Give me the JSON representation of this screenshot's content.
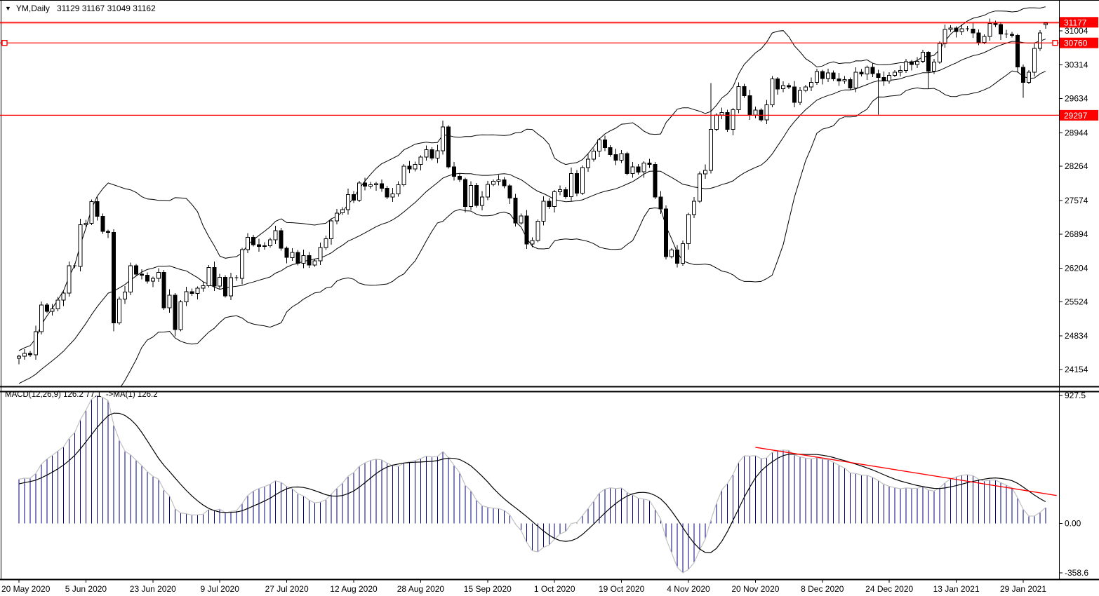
{
  "window": {
    "symbol_period": "YM,Daily",
    "ohlc_readout": "31129 31167 31049 31162"
  },
  "price_panel": {
    "axis_labels": [
      31004,
      30314,
      29634,
      28944,
      28264,
      27574,
      26894,
      26204,
      25524,
      24834,
      24154
    ],
    "levels": [
      {
        "value": 31177,
        "label": "31177",
        "selected": false,
        "emphasized": true
      },
      {
        "value": 30760,
        "label": "30760",
        "selected": true,
        "emphasized": false
      },
      {
        "value": 29297,
        "label": "29297",
        "selected": false,
        "emphasized": false
      }
    ]
  },
  "macd_panel": {
    "label": "MACD(12,26,9) 126.2 77.1  ->MA(1) 126.2",
    "axis_labels": [
      "927.5",
      "0.00",
      "-358.6"
    ]
  },
  "x_axis": {
    "labels": [
      "20 May 2020",
      "5 Jun 2020",
      "23 Jun 2020",
      "9 Jul 2020",
      "27 Jul 2020",
      "12 Aug 2020",
      "28 Aug 2020",
      "15 Sep 2020",
      "1 Oct 2020",
      "19 Oct 2020",
      "4 Nov 2020",
      "20 Nov 2020",
      "8 Dec 2020",
      "24 Dec 2020",
      "13 Jan 2021",
      "29 Jan 2021"
    ],
    "bars_per_label": 12
  },
  "colors": {
    "level_red": "#ff0000",
    "histogram_navy": "#000080",
    "macd_line_silver": "#c0c0c0",
    "signal_black": "#000000",
    "bull_fill": "#ffffff",
    "bear_fill": "#000000",
    "axis_text": "#000000",
    "tag_text": "#ffffff"
  },
  "chart_data": {
    "type": "candlestick",
    "title": "YM,Daily",
    "current_bar": {
      "open": 31129,
      "high": 31167,
      "low": 31049,
      "close": 31162
    },
    "indicators": {
      "bollinger": {
        "period": 20,
        "deviation": 2
      },
      "macd": {
        "fast": 12,
        "slow": 26,
        "signal": 9
      }
    },
    "ylim_price": [
      24154,
      31004
    ],
    "ylim_macd": [
      -358.6,
      927.5
    ],
    "closes": [
      24420,
      24480,
      24450,
      24920,
      25460,
      25330,
      25380,
      25560,
      25700,
      26250,
      26240,
      27080,
      27110,
      27550,
      27250,
      26950,
      26930,
      25100,
      25580,
      25720,
      26250,
      26080,
      26060,
      25940,
      26000,
      26120,
      25400,
      25660,
      24960,
      25520,
      25730,
      25690,
      25800,
      25850,
      26220,
      25840,
      26020,
      25640,
      26010,
      26000,
      26580,
      26830,
      26680,
      26640,
      26660,
      26780,
      26960,
      26610,
      26420,
      26520,
      26300,
      26460,
      26270,
      26350,
      26620,
      26800,
      27160,
      27320,
      27390,
      27690,
      27580,
      27930,
      27860,
      27890,
      27910,
      27820,
      27640,
      27710,
      27890,
      28270,
      28210,
      28300,
      28450,
      28600,
      28430,
      28580,
      29060,
      28250,
      28060,
      28000,
      27450,
      27880,
      27470,
      27640,
      27900,
      27960,
      27990,
      27870,
      27620,
      27120,
      27260,
      26690,
      26760,
      27150,
      27560,
      27450,
      27750,
      27790,
      27650,
      28120,
      27720,
      28240,
      28410,
      28570,
      28800,
      28640,
      28500,
      28390,
      28520,
      28120,
      28250,
      28150,
      28330,
      28300,
      27640,
      27400,
      26440,
      26570,
      26300,
      26700,
      27290,
      27560,
      28110,
      28180,
      29010,
      29300,
      29350,
      29010,
      29410,
      29880,
      29690,
      29300,
      29400,
      29200,
      29510,
      30030,
      29830,
      29900,
      29870,
      29560,
      29800,
      29870,
      29960,
      30180,
      30040,
      30150,
      30030,
      29990,
      30020,
      29850,
      30170,
      30130,
      30270,
      30140,
      30060,
      29990,
      30100,
      30170,
      30200,
      30380,
      30320,
      30390,
      30570,
      30190,
      30370,
      30750,
      31030,
      31060,
      30990,
      31050,
      31040,
      30960,
      30770,
      30890,
      31150,
      31130,
      30940,
      30930,
      30910,
      30270,
      29960,
      30170,
      30650,
      30960,
      31162
    ],
    "overrides": {
      "17": [
        26930,
        26990,
        24930,
        25100
      ],
      "28": [
        25660,
        25700,
        24830,
        24960
      ],
      "76": [
        28580,
        29190,
        28500,
        29060
      ],
      "124": [
        28180,
        29950,
        28120,
        29010
      ],
      "154": [
        30140,
        30220,
        29310,
        30060
      ],
      "163": [
        30570,
        30590,
        29840,
        30190
      ],
      "179": [
        30910,
        30950,
        30160,
        30270
      ],
      "180": [
        30270,
        30320,
        29650,
        29960
      ],
      "184": [
        31129,
        31167,
        31049,
        31162
      ]
    },
    "macd_trendline": {
      "from_bar": 132,
      "from_value": 552,
      "to_bar": 186,
      "to_value": 202
    }
  }
}
